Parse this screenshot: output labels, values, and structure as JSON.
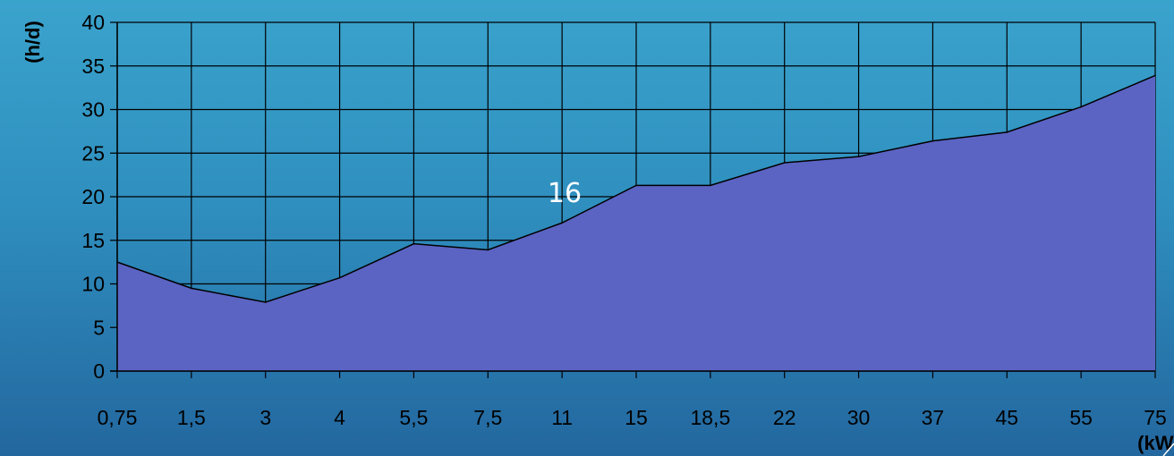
{
  "chart_data": {
    "type": "area",
    "title": "",
    "xlabel": "(kW)",
    "ylabel": "(h/d)",
    "categories": [
      "0,75",
      "1,5",
      "3",
      "4",
      "5,5",
      "7,5",
      "11",
      "15",
      "18,5",
      "22",
      "30",
      "37",
      "45",
      "55",
      "75"
    ],
    "series": [
      {
        "values": [
          12.5,
          9.5,
          7.9,
          10.7,
          14.6,
          13.9,
          17.0,
          21.3,
          21.3,
          23.9,
          24.6,
          26.4,
          27.4,
          30.3,
          33.9
        ]
      }
    ],
    "ylim": [
      0,
      40
    ],
    "yticks": [
      "0",
      "5",
      "10",
      "15",
      "20",
      "25",
      "30",
      "35",
      "40"
    ],
    "grid": true,
    "colors": {
      "fill": "#5b64c3",
      "line": "#000000",
      "grid": "#000000"
    },
    "annotation": "16"
  }
}
